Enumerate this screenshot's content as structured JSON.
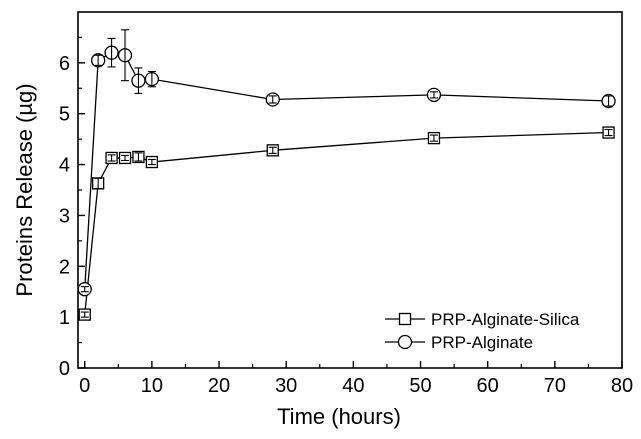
{
  "chart_data": {
    "type": "line",
    "xlabel": "Time (hours)",
    "ylabel": "Proteins Release (µg)",
    "xlim": [
      -1,
      80
    ],
    "ylim": [
      0,
      7
    ],
    "x_ticks": [
      0,
      10,
      20,
      30,
      40,
      50,
      60,
      70,
      80
    ],
    "y_ticks": [
      0,
      1,
      2,
      3,
      4,
      5,
      6
    ],
    "grid": false,
    "legend_position": "bottom-right",
    "series": [
      {
        "name": "PRP-Alginate-Silica",
        "marker": "square",
        "color": "#000000",
        "points": [
          {
            "x": 0,
            "y": 1.05,
            "err": 0.05
          },
          {
            "x": 2,
            "y": 3.63,
            "err": 0.1
          },
          {
            "x": 4,
            "y": 4.13,
            "err": 0.06
          },
          {
            "x": 6,
            "y": 4.13,
            "err": 0.05
          },
          {
            "x": 8,
            "y": 4.15,
            "err": 0.08
          },
          {
            "x": 10,
            "y": 4.05,
            "err": 0.05
          },
          {
            "x": 28,
            "y": 4.28,
            "err": 0.06
          },
          {
            "x": 52,
            "y": 4.52,
            "err": 0.06
          },
          {
            "x": 78,
            "y": 4.63,
            "err": 0.06
          }
        ]
      },
      {
        "name": "PRP-Alginate",
        "marker": "circle",
        "color": "#000000",
        "points": [
          {
            "x": 0,
            "y": 1.55,
            "err": 0.05
          },
          {
            "x": 2,
            "y": 6.05,
            "err": 0.1
          },
          {
            "x": 4,
            "y": 6.2,
            "err": 0.28
          },
          {
            "x": 6,
            "y": 6.15,
            "err": 0.5
          },
          {
            "x": 8,
            "y": 5.65,
            "err": 0.25
          },
          {
            "x": 10,
            "y": 5.68,
            "err": 0.15
          },
          {
            "x": 28,
            "y": 5.28,
            "err": 0.07
          },
          {
            "x": 52,
            "y": 5.37,
            "err": 0.06
          },
          {
            "x": 78,
            "y": 5.25,
            "err": 0.1
          }
        ]
      }
    ]
  }
}
